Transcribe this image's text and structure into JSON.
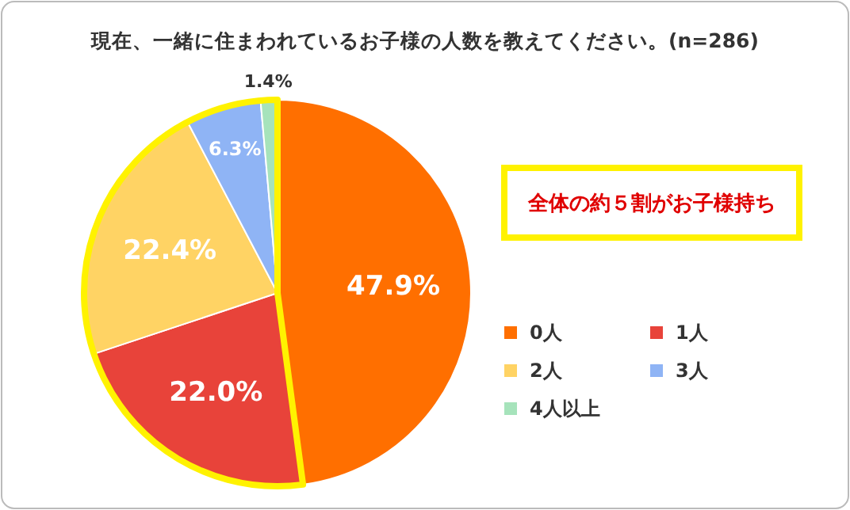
{
  "chart_data": {
    "type": "pie",
    "title": "現在、一緒に住まわれているお子様の人数を教えてください。(n=286)",
    "categories": [
      "0人",
      "1人",
      "2人",
      "3人",
      "4人以上"
    ],
    "values": [
      47.9,
      22.0,
      22.4,
      6.3,
      1.4
    ],
    "value_labels": [
      "47.9%",
      "22.0%",
      "22.4%",
      "6.3%",
      "1.4%"
    ],
    "colors": [
      "#ff6f00",
      "#e8433a",
      "#ffd364",
      "#8fb4f5",
      "#a6e3bb"
    ],
    "annotations": [
      "全体の約５割がお子様持ち"
    ],
    "legend": "right"
  }
}
